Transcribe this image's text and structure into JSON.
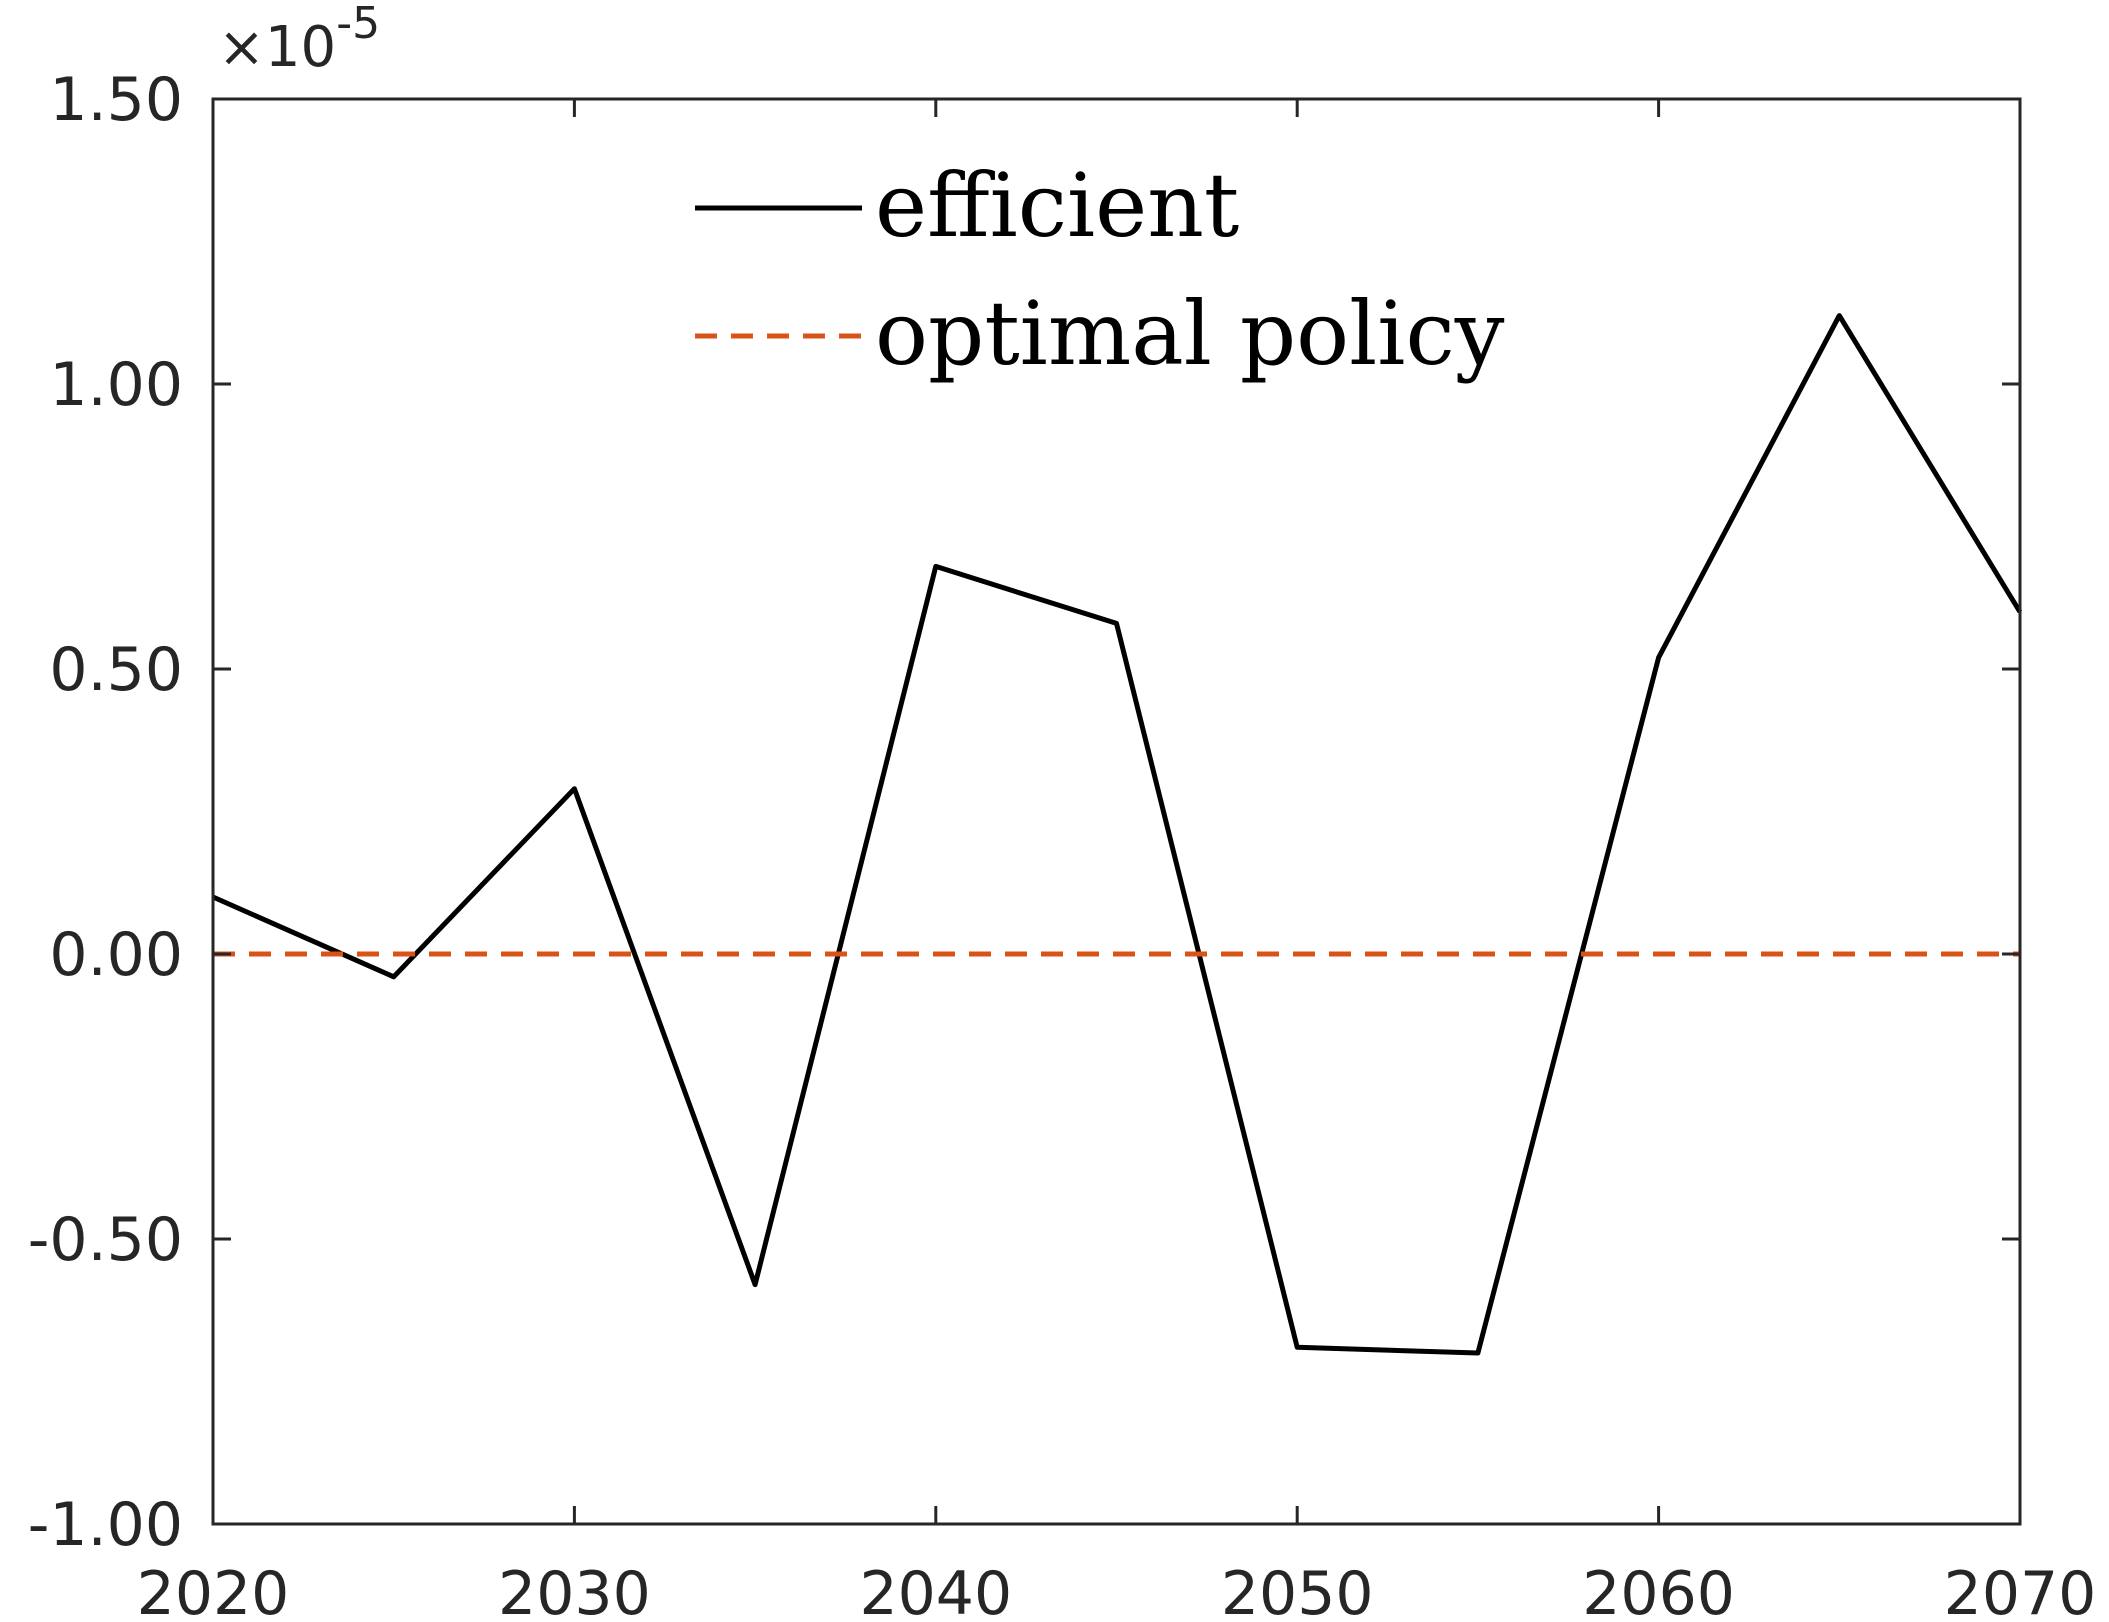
{
  "chart_data": {
    "type": "line",
    "title": "",
    "xlabel": "",
    "ylabel": "",
    "xlim": [
      2020,
      2070
    ],
    "ylim": [
      -1.0,
      1.5
    ],
    "x_ticks": [
      2020,
      2030,
      2040,
      2050,
      2060,
      2070
    ],
    "x_tick_labels": [
      "2020",
      "2030",
      "2040",
      "2050",
      "2060",
      "2070"
    ],
    "y_ticks": [
      -1.0,
      -0.5,
      0.0,
      0.5,
      1.0,
      1.5
    ],
    "y_tick_labels": [
      "-1.00",
      "-0.50",
      "0.00",
      "0.50",
      "1.00",
      "1.50"
    ],
    "y_multiplier": {
      "base": "×10",
      "exponent": "-5"
    },
    "grid": false,
    "legend_position": "top",
    "series": [
      {
        "name": "efficient",
        "color": "#000000",
        "style": "solid",
        "x": [
          2020,
          2025,
          2030,
          2035,
          2040,
          2045,
          2050,
          2055,
          2060,
          2065,
          2070
        ],
        "y": [
          0.1,
          -0.04,
          0.29,
          -0.58,
          0.68,
          0.58,
          -0.69,
          -0.7,
          0.52,
          1.12,
          0.6
        ]
      },
      {
        "name": "optimal policy",
        "color": "#D95319",
        "style": "dashed",
        "x": [
          2020,
          2070
        ],
        "y": [
          0.0,
          0.0
        ]
      }
    ]
  }
}
